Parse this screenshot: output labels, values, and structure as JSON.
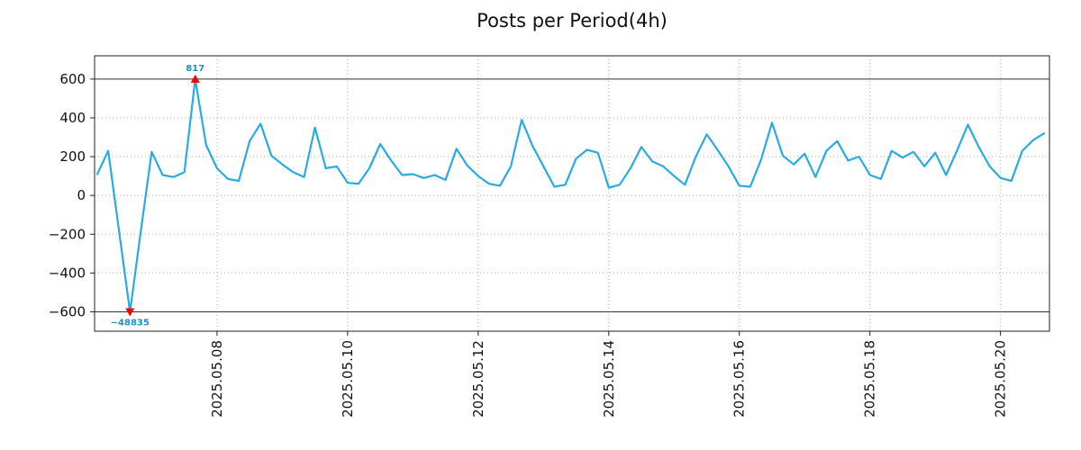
{
  "chart_data": {
    "type": "line",
    "title": "Posts per Period(4h)",
    "xlabel": "",
    "ylabel": "",
    "x_unit": "hours since 2025-05-06 00:00, one point per 4h period",
    "xlim": [
      3,
      354
    ],
    "ylim": [
      -700,
      720
    ],
    "grid": true,
    "grid_color": "#b0b0b0",
    "line_color": "#29abe2",
    "spine_color": "#222222",
    "clip_lines": [
      600,
      -600
    ],
    "clip_line_color": "#333333",
    "x_hours": [
      4,
      8,
      12,
      16,
      20,
      24,
      28,
      32,
      36,
      40,
      44,
      48,
      52,
      56,
      60,
      64,
      68,
      72,
      76,
      80,
      84,
      88,
      92,
      96,
      100,
      104,
      108,
      112,
      116,
      120,
      124,
      128,
      132,
      136,
      140,
      144,
      148,
      152,
      156,
      160,
      164,
      168,
      172,
      176,
      180,
      184,
      188,
      192,
      196,
      200,
      204,
      208,
      212,
      216,
      220,
      224,
      228,
      232,
      236,
      240,
      244,
      248,
      252,
      256,
      260,
      264,
      268,
      272,
      276,
      280,
      284,
      288,
      292,
      296,
      300,
      304,
      308,
      312,
      316,
      320,
      324,
      328,
      332,
      336,
      340,
      344,
      348,
      352
    ],
    "values": [
      110,
      230,
      -185,
      -600,
      -185,
      225,
      105,
      95,
      120,
      600,
      260,
      140,
      85,
      75,
      280,
      370,
      205,
      160,
      120,
      95,
      350,
      140,
      150,
      65,
      60,
      140,
      265,
      180,
      105,
      110,
      90,
      105,
      80,
      240,
      155,
      100,
      60,
      50,
      150,
      390,
      255,
      150,
      45,
      55,
      190,
      235,
      220,
      40,
      55,
      140,
      250,
      175,
      150,
      100,
      55,
      200,
      315,
      235,
      150,
      50,
      45,
      185,
      375,
      205,
      160,
      215,
      95,
      230,
      280,
      180,
      200,
      105,
      85,
      230,
      195,
      225,
      150,
      220,
      105,
      230,
      365,
      250,
      150,
      90,
      75,
      230,
      285,
      320
    ],
    "y_ticks": [
      {
        "v": 600,
        "label": "600"
      },
      {
        "v": 400,
        "label": "400"
      },
      {
        "v": 200,
        "label": "200"
      },
      {
        "v": 0,
        "label": "0"
      },
      {
        "v": -200,
        "label": "−200"
      },
      {
        "v": -400,
        "label": "−400"
      },
      {
        "v": -600,
        "label": "−600"
      }
    ],
    "x_ticks": [
      {
        "v": 48,
        "label": "2025.05.08"
      },
      {
        "v": 96,
        "label": "2025.05.10"
      },
      {
        "v": 144,
        "label": "2025.05.12"
      },
      {
        "v": 192,
        "label": "2025.05.14"
      },
      {
        "v": 240,
        "label": "2025.05.16"
      },
      {
        "v": 288,
        "label": "2025.05.18"
      },
      {
        "v": 336,
        "label": "2025.05.20"
      }
    ],
    "annotations": [
      {
        "x_hour": 40,
        "y": 600,
        "actual_value": 817,
        "label": "817",
        "marker": "triangle-up",
        "marker_color": "#ff0000",
        "label_color": "#1f8fc9",
        "position": "above"
      },
      {
        "x_hour": 16,
        "y": -600,
        "actual_value": -48835,
        "label": "−48835",
        "marker": "triangle-down",
        "marker_color": "#ff0000",
        "label_color": "#1f8fc9",
        "position": "below"
      }
    ],
    "legend": null
  }
}
